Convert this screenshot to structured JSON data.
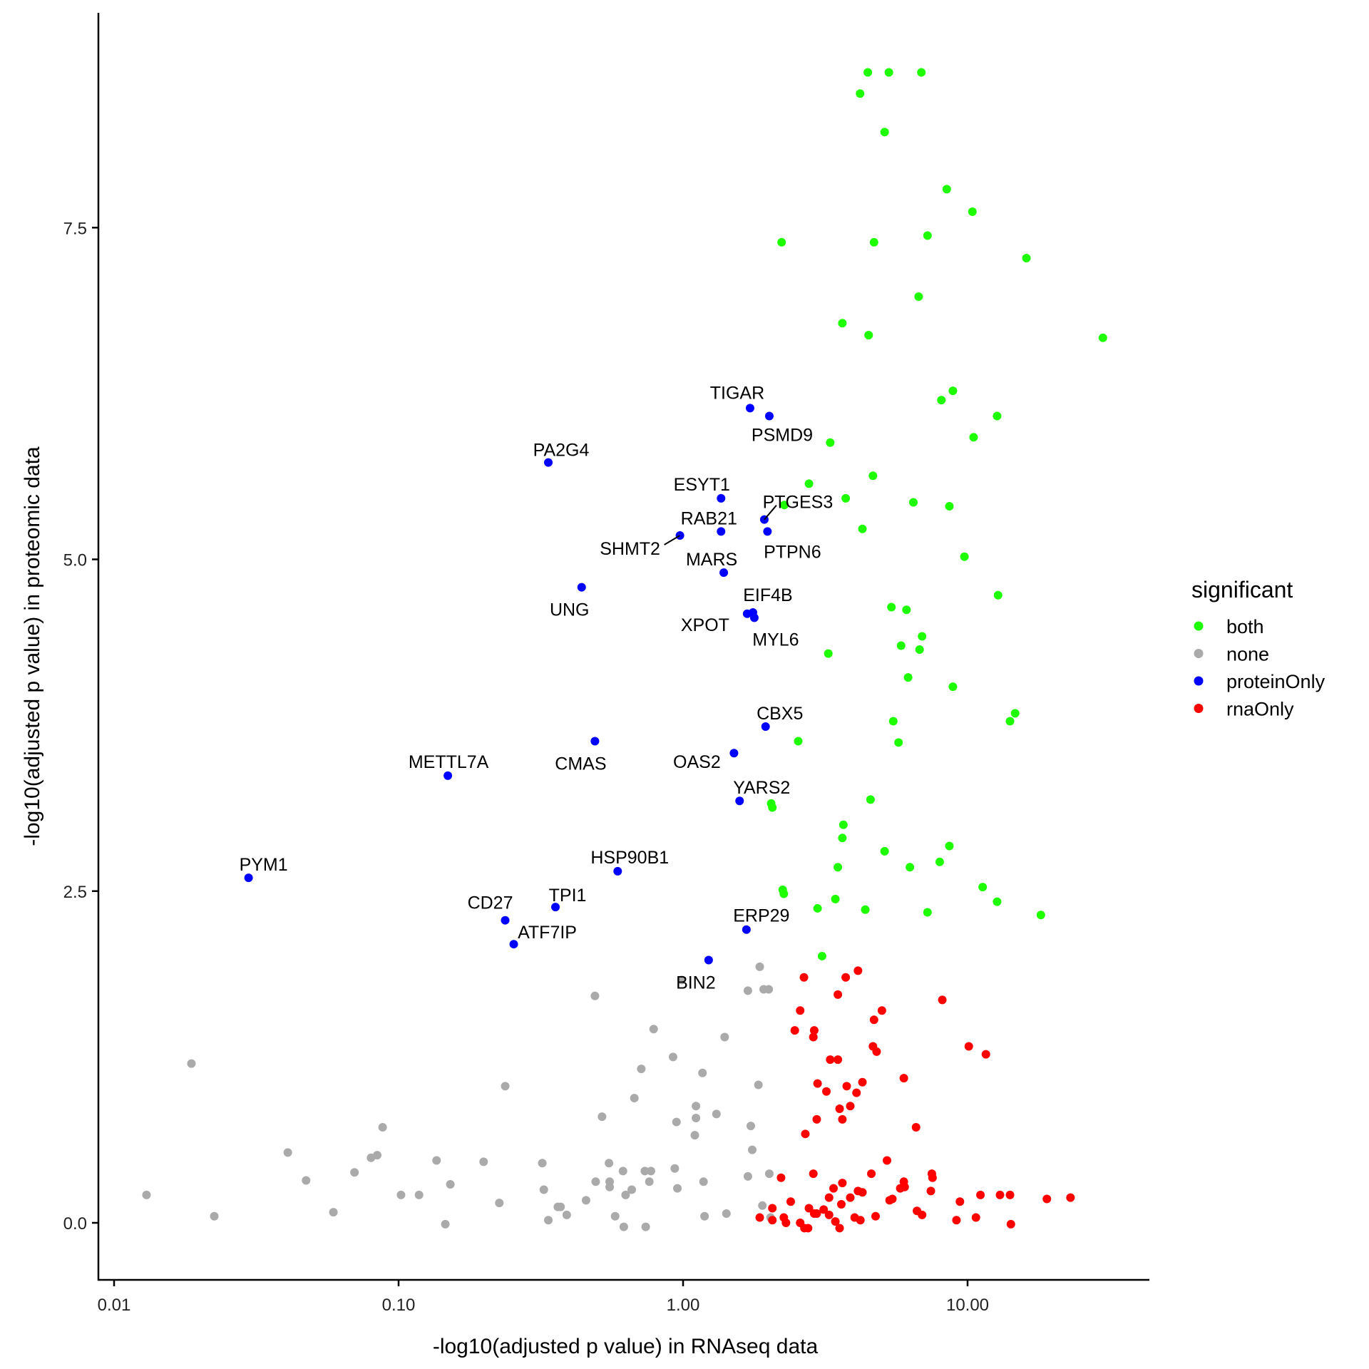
{
  "chart_data": {
    "type": "scatter",
    "title": "",
    "xlabel": "-log10(adjusted p value) in RNAseq data",
    "ylabel": "-log10(adjusted p value) in proteomic data",
    "xscale": "log10",
    "xlim": [
      0.0088,
      44
    ],
    "ylim": [
      -0.43,
      9.2
    ],
    "x_ticks": [
      0.01,
      0.1,
      1,
      10
    ],
    "x_tick_labels": [
      "0.01",
      "0.10",
      "1.00",
      "10.00"
    ],
    "y_ticks": [
      0,
      2.5,
      5,
      7.5
    ],
    "y_tick_labels": [
      "0.0",
      "2.5",
      "5.0",
      "7.5"
    ],
    "grid": false,
    "legend": {
      "title": "significant",
      "position": "right",
      "entries": [
        {
          "name": "both",
          "color": "#1EFF00"
        },
        {
          "name": "none",
          "color": "#AAAAAA"
        },
        {
          "name": "proteinOnly",
          "color": "#0000FF"
        },
        {
          "name": "rnaOnly",
          "color": "#FF0000"
        }
      ]
    },
    "series": [
      {
        "name": "both",
        "color": "#1EFF00",
        "points": [
          [
            4.46,
            8.67
          ],
          [
            5.29,
            8.67
          ],
          [
            6.88,
            8.67
          ],
          [
            4.19,
            8.51
          ],
          [
            5.11,
            8.22
          ],
          [
            8.45,
            7.79
          ],
          [
            10.4,
            7.62
          ],
          [
            2.22,
            7.39
          ],
          [
            4.69,
            7.39
          ],
          [
            7.23,
            7.44
          ],
          [
            16.1,
            7.27
          ],
          [
            6.73,
            6.98
          ],
          [
            3.63,
            6.78
          ],
          [
            4.49,
            6.69
          ],
          [
            29.9,
            6.67
          ],
          [
            8.88,
            6.27
          ],
          [
            8.09,
            6.2
          ],
          [
            12.7,
            6.08
          ],
          [
            10.5,
            5.92
          ],
          [
            3.29,
            5.88
          ],
          [
            2.77,
            5.57
          ],
          [
            4.65,
            5.63
          ],
          [
            3.73,
            5.46
          ],
          [
            6.45,
            5.43
          ],
          [
            8.63,
            5.4
          ],
          [
            2.27,
            5.41
          ],
          [
            4.27,
            5.23
          ],
          [
            9.75,
            5.02
          ],
          [
            12.8,
            4.73
          ],
          [
            5.4,
            4.64
          ],
          [
            6.1,
            4.62
          ],
          [
            6.92,
            4.42
          ],
          [
            5.84,
            4.35
          ],
          [
            6.78,
            4.32
          ],
          [
            3.24,
            4.29
          ],
          [
            6.18,
            4.11
          ],
          [
            8.88,
            4.04
          ],
          [
            14.7,
            3.84
          ],
          [
            14.1,
            3.78
          ],
          [
            5.48,
            3.78
          ],
          [
            2.54,
            3.63
          ],
          [
            5.72,
            3.62
          ],
          [
            4.56,
            3.19
          ],
          [
            2.04,
            3.16
          ],
          [
            2.06,
            3.13
          ],
          [
            3.66,
            3.0
          ],
          [
            3.63,
            2.9
          ],
          [
            5.11,
            2.8
          ],
          [
            8.63,
            2.84
          ],
          [
            7.98,
            2.72
          ],
          [
            3.5,
            2.68
          ],
          [
            6.27,
            2.68
          ],
          [
            11.3,
            2.53
          ],
          [
            2.24,
            2.51
          ],
          [
            2.26,
            2.48
          ],
          [
            3.43,
            2.44
          ],
          [
            12.7,
            2.42
          ],
          [
            2.97,
            2.37
          ],
          [
            4.37,
            2.36
          ],
          [
            7.23,
            2.34
          ],
          [
            18.1,
            2.32
          ],
          [
            3.08,
            2.01
          ]
        ]
      },
      {
        "name": "none",
        "color": "#AAAAAA",
        "points": [
          [
            0.0187,
            1.2
          ],
          [
            0.013,
            0.21
          ],
          [
            0.0225,
            0.05
          ],
          [
            0.0408,
            0.53
          ],
          [
            0.0473,
            0.32
          ],
          [
            0.059,
            0.08
          ],
          [
            0.07,
            0.38
          ],
          [
            0.08,
            0.49
          ],
          [
            0.0841,
            0.51
          ],
          [
            0.0879,
            0.72
          ],
          [
            0.102,
            0.21
          ],
          [
            0.118,
            0.21
          ],
          [
            0.136,
            0.47
          ],
          [
            0.146,
            -0.01
          ],
          [
            0.152,
            0.29
          ],
          [
            0.199,
            0.46
          ],
          [
            0.226,
            0.15
          ],
          [
            0.237,
            1.03
          ],
          [
            0.32,
            0.45
          ],
          [
            0.324,
            0.25
          ],
          [
            0.336,
            0.02
          ],
          [
            0.363,
            0.12
          ],
          [
            0.371,
            0.12
          ],
          [
            0.39,
            0.06
          ],
          [
            0.456,
            0.17
          ],
          [
            0.493,
            0.31
          ],
          [
            0.49,
            1.71
          ],
          [
            0.519,
            0.8
          ],
          [
            0.549,
            0.45
          ],
          [
            0.552,
            0.31
          ],
          [
            0.552,
            0.27
          ],
          [
            0.577,
            0.05
          ],
          [
            0.615,
            0.39
          ],
          [
            0.628,
            0.21
          ],
          [
            0.66,
            0.25
          ],
          [
            0.619,
            -0.03
          ],
          [
            0.674,
            0.94
          ],
          [
            0.713,
            1.16
          ],
          [
            0.739,
            -0.03
          ],
          [
            0.734,
            0.39
          ],
          [
            0.761,
            0.31
          ],
          [
            0.771,
            0.39
          ],
          [
            0.788,
            1.46
          ],
          [
            0.922,
            1.25
          ],
          [
            0.935,
            0.41
          ],
          [
            0.948,
            0.76
          ],
          [
            0.955,
            0.26
          ],
          [
            0.989,
            1.83
          ],
          [
            1.11,
            0.79
          ],
          [
            1.11,
            0.88
          ],
          [
            1.1,
            0.66
          ],
          [
            1.17,
            1.13
          ],
          [
            1.18,
            0.31
          ],
          [
            1.19,
            0.05
          ],
          [
            1.31,
            0.82
          ],
          [
            1.4,
            1.4
          ],
          [
            1.42,
            0.07
          ],
          [
            1.69,
            1.75
          ],
          [
            1.69,
            0.35
          ],
          [
            1.73,
            0.73
          ],
          [
            1.75,
            0.55
          ],
          [
            1.84,
            1.04
          ],
          [
            1.86,
            1.93
          ],
          [
            1.9,
            0.13
          ],
          [
            1.92,
            1.76
          ],
          [
            2.0,
            1.76
          ],
          [
            2.01,
            0.37
          ],
          [
            2.03,
            0.04
          ]
        ]
      },
      {
        "name": "proteinOnly",
        "color": "#0000FF",
        "points": [
          [
            1.72,
            6.14,
            "TIGAR"
          ],
          [
            2.01,
            6.08,
            "PSMD9"
          ],
          [
            0.336,
            5.73,
            "PA2G4"
          ],
          [
            1.36,
            5.46,
            "ESYT1"
          ],
          [
            1.93,
            5.3,
            "PTGES3"
          ],
          [
            1.36,
            5.21,
            "RAB21"
          ],
          [
            1.98,
            5.21,
            "PTPN6"
          ],
          [
            0.975,
            5.18,
            "SHMT2"
          ],
          [
            1.39,
            4.9,
            "MARS"
          ],
          [
            0.44,
            4.79,
            "UNG"
          ],
          [
            1.76,
            4.6,
            "EIF4B"
          ],
          [
            1.68,
            4.59,
            "XPOT"
          ],
          [
            1.78,
            4.56,
            "MYL6"
          ],
          [
            1.95,
            3.74,
            "CBX5"
          ],
          [
            0.49,
            3.63,
            "CMAS"
          ],
          [
            1.51,
            3.54,
            "OAS2"
          ],
          [
            0.149,
            3.37,
            "METTL7A"
          ],
          [
            1.58,
            3.18,
            "YARS2"
          ],
          [
            0.589,
            2.65,
            "HSP90B1"
          ],
          [
            0.0297,
            2.6,
            "PYM1"
          ],
          [
            0.356,
            2.38,
            "TPI1"
          ],
          [
            0.237,
            2.28,
            "CD27"
          ],
          [
            1.67,
            2.21,
            "ERP29"
          ],
          [
            0.254,
            2.1,
            "ATF7IP"
          ],
          [
            1.23,
            1.98,
            "BIN2"
          ]
        ]
      },
      {
        "name": "rnaOnly",
        "color": "#FF0000",
        "points": [
          [
            2.66,
            1.85
          ],
          [
            3.73,
            1.85
          ],
          [
            4.12,
            1.9
          ],
          [
            3.5,
            1.72
          ],
          [
            8.15,
            1.68
          ],
          [
            2.58,
            1.6
          ],
          [
            5.0,
            1.6
          ],
          [
            4.69,
            1.53
          ],
          [
            2.47,
            1.45
          ],
          [
            2.89,
            1.45
          ],
          [
            2.87,
            1.4
          ],
          [
            4.65,
            1.33
          ],
          [
            10.1,
            1.33
          ],
          [
            4.79,
            1.29
          ],
          [
            11.6,
            1.27
          ],
          [
            3.29,
            1.23
          ],
          [
            3.5,
            1.23
          ],
          [
            5.97,
            1.09
          ],
          [
            4.27,
            1.06
          ],
          [
            2.97,
            1.05
          ],
          [
            3.76,
            1.03
          ],
          [
            3.19,
            0.99
          ],
          [
            4.07,
            0.98
          ],
          [
            3.87,
            0.88
          ],
          [
            3.55,
            0.86
          ],
          [
            2.95,
            0.78
          ],
          [
            3.63,
            0.78
          ],
          [
            6.59,
            0.72
          ],
          [
            2.69,
            0.67
          ],
          [
            5.21,
            0.47
          ],
          [
            4.59,
            0.37
          ],
          [
            2.87,
            0.37
          ],
          [
            7.49,
            0.37
          ],
          [
            7.53,
            0.34
          ],
          [
            2.21,
            0.34
          ],
          [
            3.63,
            0.3
          ],
          [
            5.97,
            0.31
          ],
          [
            3.38,
            0.26
          ],
          [
            6.01,
            0.27
          ],
          [
            5.8,
            0.26
          ],
          [
            4.12,
            0.24
          ],
          [
            4.27,
            0.23
          ],
          [
            11.1,
            0.21
          ],
          [
            13.0,
            0.21
          ],
          [
            14.1,
            0.21
          ],
          [
            19.0,
            0.18
          ],
          [
            23.0,
            0.19
          ],
          [
            5.44,
            0.18
          ],
          [
            5.32,
            0.17
          ],
          [
            3.26,
            0.19
          ],
          [
            3.87,
            0.19
          ],
          [
            2.39,
            0.16
          ],
          [
            3.6,
            0.14
          ],
          [
            7.43,
            0.24
          ],
          [
            9.4,
            0.16
          ],
          [
            2.06,
            0.11
          ],
          [
            2.77,
            0.11
          ],
          [
            3.12,
            0.1
          ],
          [
            2.89,
            0.07
          ],
          [
            2.95,
            0.07
          ],
          [
            3.26,
            0.06
          ],
          [
            2.26,
            0.04
          ],
          [
            4.01,
            0.04
          ],
          [
            6.64,
            0.09
          ],
          [
            6.92,
            0.06
          ],
          [
            9.14,
            0.02
          ],
          [
            10.7,
            0.04
          ],
          [
            4.75,
            0.05
          ],
          [
            2.06,
            0.02
          ],
          [
            2.58,
            0.0
          ],
          [
            2.3,
            0.0
          ],
          [
            2.67,
            -0.04
          ],
          [
            3.43,
            0.01
          ],
          [
            3.55,
            -0.04
          ],
          [
            4.2,
            0.02
          ],
          [
            2.75,
            -0.04
          ],
          [
            14.2,
            -0.01
          ],
          [
            1.86,
            0.04
          ]
        ]
      }
    ]
  }
}
